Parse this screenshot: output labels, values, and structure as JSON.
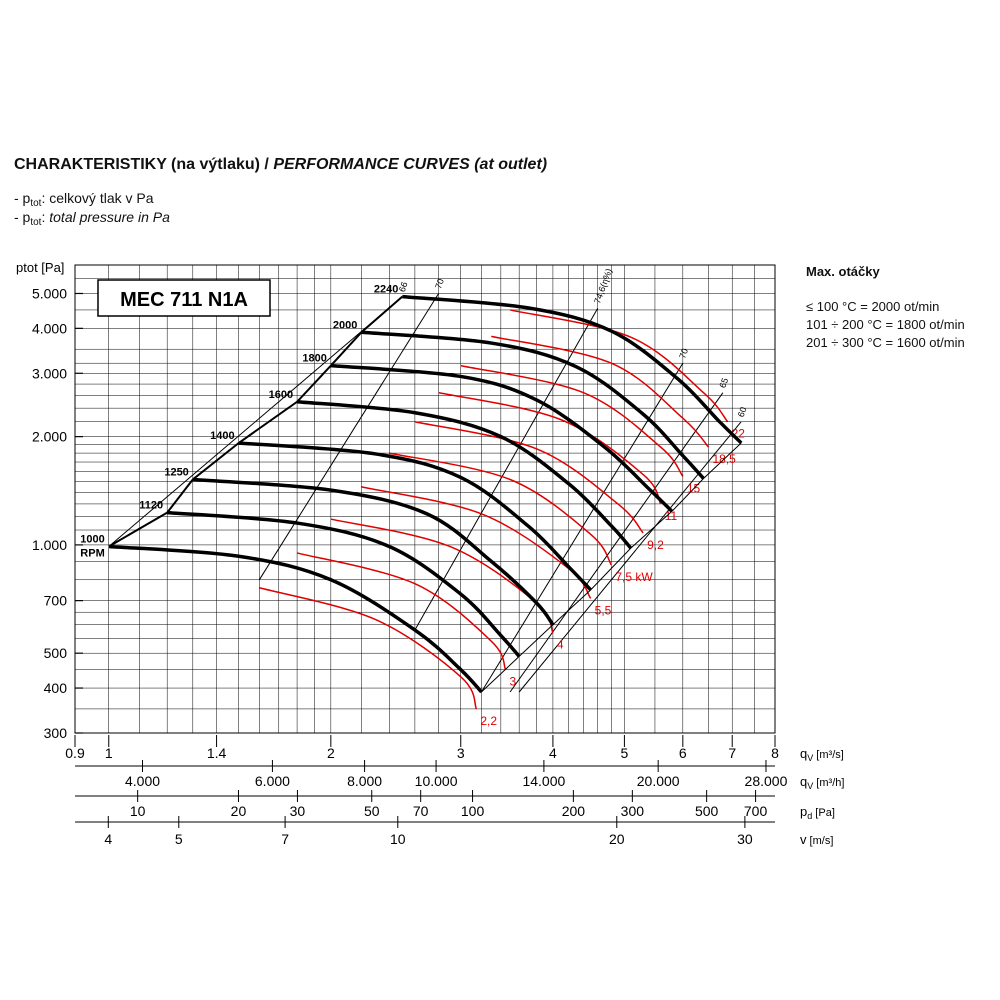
{
  "header": {
    "title_cz": "CHARAKTERISTIKY (na výtlaku) /",
    "title_en": "PERFORMANCE CURVES (at outlet)",
    "note1_prefix": "- p",
    "note1_sub": "tot",
    "note1_text": ": celkový tlak v Pa",
    "note2_prefix": "- p",
    "note2_sub": "tot",
    "note2_text": ": ",
    "note2_it": "total pressure in Pa"
  },
  "side": {
    "heading": "Max. otáčky",
    "lines": [
      "≤ 100 °C = 2000 ot/min",
      "101 ÷ 200 °C = 1800 ot/min",
      "201 ÷ 300 °C = 1600 ot/min"
    ]
  },
  "chart_data": {
    "type": "line",
    "title": "MEC 711 N1A",
    "ylabel": "ptot [Pa]",
    "y_scale": "log",
    "x_scale": "log",
    "ylim": [
      300,
      6000
    ],
    "xlim": [
      0.9,
      8
    ],
    "y_ticks": [
      {
        "v": 5000,
        "label": "5.000"
      },
      {
        "v": 4000,
        "label": "4.000"
      },
      {
        "v": 3000,
        "label": "3.000"
      },
      {
        "v": 2000,
        "label": "2.000"
      },
      {
        "v": 1000,
        "label": "1.000"
      },
      {
        "v": 700,
        "label": "700"
      },
      {
        "v": 500,
        "label": "500"
      },
      {
        "v": 400,
        "label": "400"
      },
      {
        "v": 300,
        "label": "300"
      }
    ],
    "x_axes": [
      {
        "name": "qv",
        "unit": "m3/s",
        "label_main": "q",
        "label_sub": "V",
        "label_unit": " [m³/s]",
        "ticks": [
          {
            "v": 0.9,
            "label": "0.9"
          },
          {
            "v": 1,
            "label": "1"
          },
          {
            "v": 1.4,
            "label": "1.4"
          },
          {
            "v": 2,
            "label": "2"
          },
          {
            "v": 3,
            "label": "3"
          },
          {
            "v": 4,
            "label": "4"
          },
          {
            "v": 5,
            "label": "5"
          },
          {
            "v": 6,
            "label": "6"
          },
          {
            "v": 7,
            "label": "7"
          },
          {
            "v": 8,
            "label": "8"
          }
        ]
      },
      {
        "name": "qv_h",
        "unit": "m3/h",
        "label_main": "q",
        "label_sub": "V",
        "label_unit": " [m³/h]",
        "ticks": [
          {
            "v": 4000,
            "label": "4.000"
          },
          {
            "v": 6000,
            "label": "6.000"
          },
          {
            "v": 8000,
            "label": "8.000"
          },
          {
            "v": 10000,
            "label": "10.000"
          },
          {
            "v": 14000,
            "label": "14.000"
          },
          {
            "v": 20000,
            "label": "20.000"
          },
          {
            "v": 28000,
            "label": "28.000"
          }
        ]
      },
      {
        "name": "pd",
        "unit": "Pa",
        "label_main": "p",
        "label_sub": "d",
        "label_unit": " [Pa]",
        "ticks": [
          {
            "v": 10,
            "label": "10"
          },
          {
            "v": 20,
            "label": "20"
          },
          {
            "v": 30,
            "label": "30"
          },
          {
            "v": 50,
            "label": "50"
          },
          {
            "v": 70,
            "label": "70"
          },
          {
            "v": 100,
            "label": "100"
          },
          {
            "v": 200,
            "label": "200"
          },
          {
            "v": 300,
            "label": "300"
          },
          {
            "v": 500,
            "label": "500"
          },
          {
            "v": 700,
            "label": "700"
          }
        ]
      },
      {
        "name": "v",
        "unit": "m/s",
        "label_main": "v",
        "label_sub": "",
        "label_unit": " [m/s]",
        "ticks": [
          {
            "v": 4,
            "label": "4"
          },
          {
            "v": 5,
            "label": "5"
          },
          {
            "v": 7,
            "label": "7"
          },
          {
            "v": 10,
            "label": "10"
          },
          {
            "v": 20,
            "label": "20"
          },
          {
            "v": 30,
            "label": "30"
          }
        ]
      }
    ],
    "speed_curves": [
      {
        "rpm": 1000,
        "label": "1000",
        "label2": "RPM",
        "x": [
          1.0,
          1.5,
          2.0,
          2.6,
          3.0,
          3.2
        ],
        "y": [
          990,
          930,
          800,
          580,
          450,
          390
        ]
      },
      {
        "rpm": 1120,
        "label": "1120",
        "x": [
          1.2,
          1.8,
          2.4,
          3.0,
          3.4,
          3.6
        ],
        "y": [
          1230,
          1150,
          990,
          730,
          560,
          490
        ]
      },
      {
        "rpm": 1250,
        "label": "1250",
        "x": [
          1.3,
          2.0,
          2.7,
          3.3,
          3.8,
          4.0
        ],
        "y": [
          1520,
          1420,
          1220,
          900,
          690,
          600
        ]
      },
      {
        "rpm": 1400,
        "label": "1400",
        "x": [
          1.5,
          2.3,
          3.0,
          3.7,
          4.2,
          4.5
        ],
        "y": [
          1920,
          1790,
          1540,
          1130,
          870,
          750
        ]
      },
      {
        "rpm": 1600,
        "label": "1600",
        "x": [
          1.8,
          2.6,
          3.4,
          4.2,
          4.8,
          5.1
        ],
        "y": [
          2500,
          2330,
          2000,
          1480,
          1130,
          980
        ]
      },
      {
        "rpm": 1800,
        "label": "1800",
        "x": [
          2.0,
          3.0,
          3.8,
          4.7,
          5.4,
          5.8
        ],
        "y": [
          3150,
          2940,
          2530,
          1870,
          1430,
          1240
        ]
      },
      {
        "rpm": 2000,
        "label": "2000",
        "x": [
          2.2,
          3.3,
          4.3,
          5.3,
          6.0,
          6.4
        ],
        "y": [
          3900,
          3640,
          3130,
          2310,
          1770,
          1530
        ]
      },
      {
        "rpm": 2240,
        "label": "2240",
        "x": [
          2.5,
          3.7,
          4.8,
          5.9,
          6.7,
          7.2
        ],
        "y": [
          4900,
          4560,
          3930,
          2900,
          2220,
          1920
        ]
      }
    ],
    "power_curves": [
      {
        "label": "2,2",
        "x": [
          1.6,
          2.3,
          3.0,
          3.15
        ],
        "y": [
          760,
          620,
          430,
          350
        ]
      },
      {
        "label": "3",
        "x": [
          1.8,
          2.6,
          3.3,
          3.45
        ],
        "y": [
          950,
          780,
          540,
          450
        ]
      },
      {
        "label": "4",
        "x": [
          2.0,
          2.9,
          3.8,
          4.0
        ],
        "y": [
          1180,
          990,
          690,
          570
        ]
      },
      {
        "label": "5,5",
        "x": [
          2.2,
          3.2,
          4.2,
          4.5
        ],
        "y": [
          1450,
          1220,
          860,
          710
        ]
      },
      {
        "label": "7,5 kW",
        "x": [
          2.4,
          3.5,
          4.5,
          4.8
        ],
        "y": [
          1800,
          1520,
          1070,
          880
        ]
      },
      {
        "label": "9,2",
        "x": [
          2.6,
          3.8,
          4.9,
          5.3
        ],
        "y": [
          2200,
          1850,
          1300,
          1080
        ]
      },
      {
        "label": "11",
        "x": [
          2.8,
          4.1,
          5.3,
          5.6
        ],
        "y": [
          2650,
          2230,
          1570,
          1300
        ]
      },
      {
        "label": "15",
        "x": [
          3.0,
          4.4,
          5.6,
          6.0
        ],
        "y": [
          3150,
          2650,
          1870,
          1550
        ]
      },
      {
        "label": "18,5",
        "x": [
          3.3,
          4.8,
          6.0,
          6.5
        ],
        "y": [
          3800,
          3200,
          2250,
          1870
        ]
      },
      {
        "label": "22",
        "x": [
          3.5,
          5.1,
          6.4,
          6.9
        ],
        "y": [
          4500,
          3780,
          2650,
          2200
        ]
      }
    ],
    "efficiency_lines": [
      {
        "label": "66",
        "x": [
          1.0,
          2.5
        ],
        "y": [
          990,
          4900
        ]
      },
      {
        "label": "70",
        "x": [
          1.6,
          2.8
        ],
        "y": [
          800,
          5000
        ]
      },
      {
        "label": "74,6(η%)",
        "x": [
          2.6,
          4.6
        ],
        "y": [
          580,
          4550
        ]
      },
      {
        "label": "70",
        "x": [
          3.2,
          6.0
        ],
        "y": [
          390,
          3200
        ]
      },
      {
        "label": "65",
        "x": [
          3.5,
          6.8
        ],
        "y": [
          390,
          2650
        ]
      },
      {
        "label": "60",
        "x": [
          3.6,
          7.2
        ],
        "y": [
          390,
          2200
        ]
      }
    ]
  }
}
